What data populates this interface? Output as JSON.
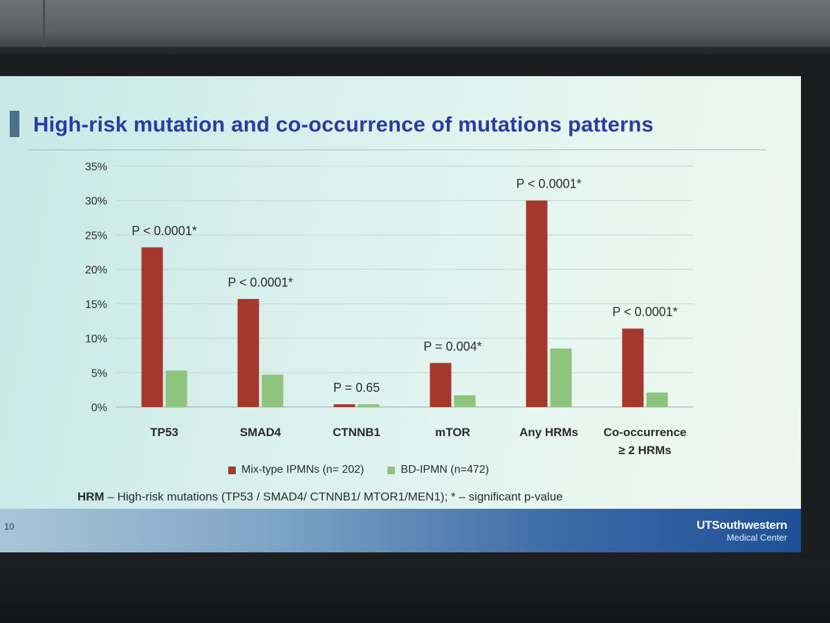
{
  "slide": {
    "title": "High-risk mutation and co-occurrence of mutations patterns",
    "slide_number": "10",
    "footnote_bold": "HRM",
    "footnote_rest": " – High-risk mutations (TP53 / SMAD4/ CTNNB1/ MTOR1/MEN1); *  –  significant p-value",
    "logo_name": "UTSouthwestern",
    "logo_sub": "Medical Center"
  },
  "chart_data": {
    "type": "bar",
    "title": "",
    "xlabel": "",
    "ylabel": "",
    "ylim": [
      0,
      35
    ],
    "y_ticks": [
      "0%",
      "5%",
      "10%",
      "15%",
      "20%",
      "25%",
      "30%",
      "35%"
    ],
    "grid": true,
    "legend_position": "bottom",
    "categories": [
      [
        "TP53"
      ],
      [
        "SMAD4"
      ],
      [
        "CTNNB1"
      ],
      [
        "mTOR"
      ],
      [
        "Any HRMs"
      ],
      [
        "Co-occurrence",
        "≥ 2 HRMs"
      ]
    ],
    "p_values": [
      "P < 0.0001*",
      "P < 0.0001*",
      "P = 0.65",
      "P = 0.004*",
      "P < 0.0001*",
      "P < 0.0001*"
    ],
    "series": [
      {
        "name": "Mix-type IPMNs (n= 202)",
        "color": "#a5382c",
        "values": [
          23.2,
          15.7,
          0.4,
          6.4,
          30.0,
          11.4
        ]
      },
      {
        "name": "BD-IPMN (n=472)",
        "color": "#8ec47e",
        "values": [
          5.3,
          4.7,
          0.4,
          1.7,
          8.5,
          2.1
        ]
      }
    ]
  }
}
